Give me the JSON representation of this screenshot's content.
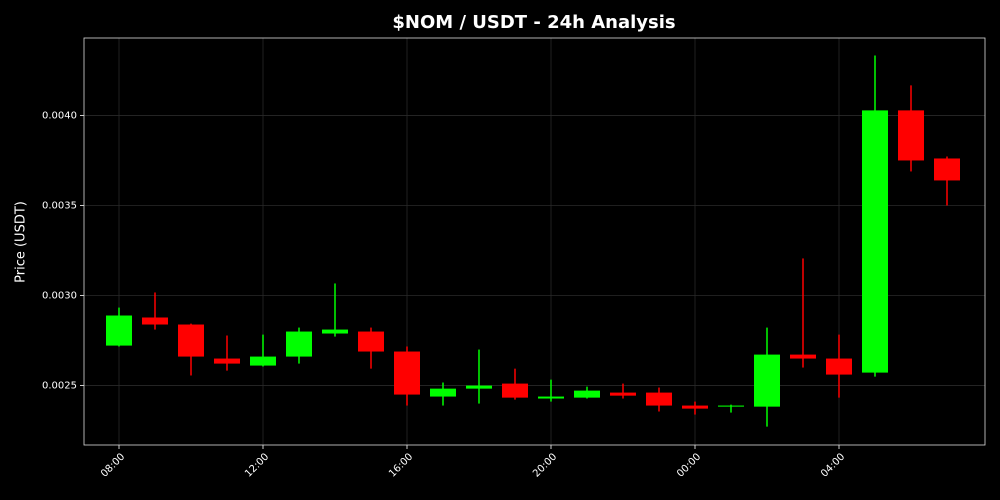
{
  "chart_data": {
    "type": "candlestick",
    "title": "$NOM / USDT - 24h Analysis",
    "y_label": "Price (USDT)",
    "categories": [
      "08:00",
      null,
      null,
      null,
      "12:00",
      null,
      null,
      null,
      "16:00",
      null,
      null,
      null,
      "20:00",
      null,
      null,
      null,
      "00:00",
      null,
      null,
      null,
      "04:00",
      null,
      null,
      null
    ],
    "open": [
      0.002722,
      0.002878,
      0.002839,
      0.00265,
      0.002611,
      0.002661,
      0.002789,
      0.0028,
      0.002689,
      0.002439,
      0.002483,
      0.002511,
      0.002428,
      0.002433,
      0.002461,
      0.002461,
      0.002389,
      0.002383,
      0.002383,
      0.002672,
      0.00265,
      0.002572,
      0.004028,
      0.003761
    ],
    "high": [
      0.002933,
      0.003017,
      0.002844,
      0.002778,
      0.002783,
      0.002822,
      0.003067,
      0.002822,
      0.002717,
      0.002517,
      0.0027,
      0.002594,
      0.002533,
      0.002494,
      0.002511,
      0.002489,
      0.002411,
      0.002394,
      0.002822,
      0.003206,
      0.002783,
      0.004333,
      0.004167,
      0.003772
    ],
    "low": [
      0.002717,
      0.002811,
      0.002556,
      0.002583,
      0.002606,
      0.002622,
      0.002772,
      0.002594,
      0.002389,
      0.002389,
      0.0024,
      0.002422,
      0.002411,
      0.002428,
      0.002428,
      0.002356,
      0.002339,
      0.00235,
      0.002272,
      0.0026,
      0.002433,
      0.00255,
      0.003689,
      0.0035
    ],
    "close": [
      0.002889,
      0.002839,
      0.002661,
      0.002622,
      0.002661,
      0.0028,
      0.002811,
      0.002689,
      0.00245,
      0.002483,
      0.0025,
      0.002433,
      0.002439,
      0.002472,
      0.002444,
      0.002389,
      0.002372,
      0.002389,
      0.002672,
      0.00265,
      0.002561,
      0.004028,
      0.00375,
      0.003639
    ],
    "up_color": "#00ff00",
    "down_color": "#ff0000",
    "ylim": [
      0.00217,
      0.00443
    ],
    "yticks": [
      0.0025,
      {
        "value": 0.003,
        "label": "0.0030"
      },
      0.0035,
      {
        "value": 0.004,
        "label": "0.0040"
      }
    ],
    "grid": true
  }
}
